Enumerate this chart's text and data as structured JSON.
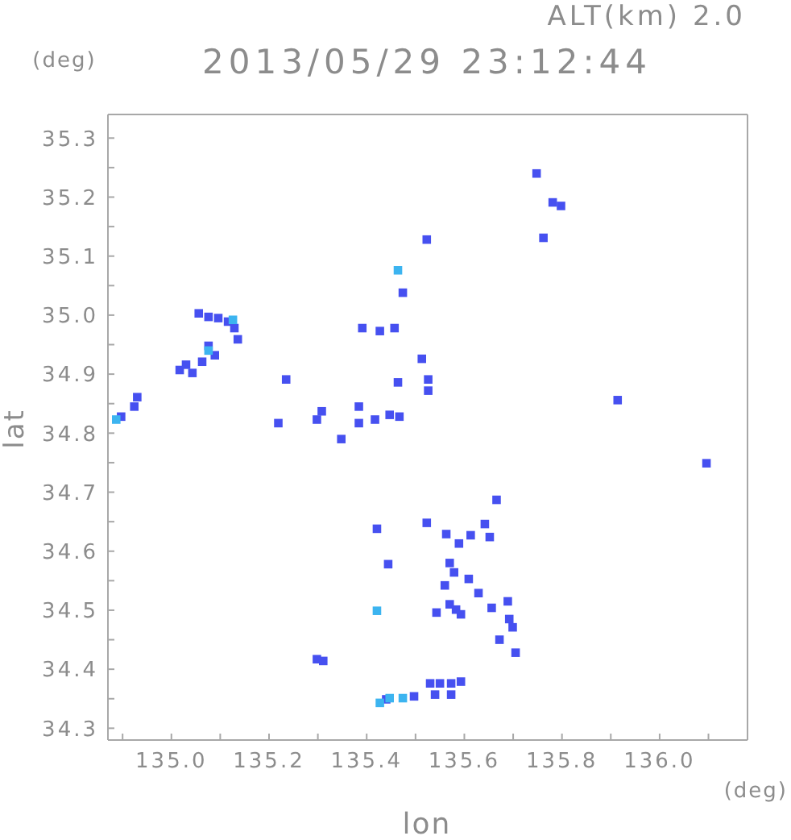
{
  "chart_data": {
    "type": "scatter",
    "title": "2013/05/29 23:12:44",
    "subtitle": "ALT(km) 2.0",
    "xlabel": "lon",
    "ylabel": "lat",
    "annotations": [
      "(deg)",
      "(deg)"
    ],
    "marker": "square",
    "xlim": [
      134.87,
      136.18
    ],
    "ylim": [
      34.28,
      35.34
    ],
    "xticks": [
      {
        "value": 134.9,
        "label": null
      },
      {
        "value": 135,
        "label": "135.0"
      },
      {
        "value": 135.1,
        "label": null
      },
      135.2,
      {
        "value": 135.3,
        "label": null
      },
      135.4,
      {
        "value": 135.5,
        "label": null
      },
      135.6,
      {
        "value": 135.7,
        "label": null
      },
      135.8,
      {
        "value": 135.9,
        "label": null
      },
      {
        "value": 136,
        "label": "136.0"
      },
      {
        "value": 136.1,
        "label": null
      }
    ],
    "yticks": [
      34.3,
      {
        "value": 34.35,
        "label": null
      },
      34.4,
      {
        "value": 34.45,
        "label": null
      },
      34.5,
      {
        "value": 34.55,
        "label": null
      },
      34.6,
      {
        "value": 34.65,
        "label": null
      },
      34.7,
      {
        "value": 34.75,
        "label": null
      },
      34.8,
      {
        "value": 34.85,
        "label": null
      },
      34.9,
      {
        "value": 34.95,
        "label": null
      },
      {
        "value": 35,
        "label": "35.0"
      },
      {
        "value": 35.05,
        "label": null
      },
      35.1,
      {
        "value": 35.15,
        "label": null
      },
      35.2,
      {
        "value": 35.25,
        "label": null
      },
      35.3
    ],
    "series": [
      {
        "color": "#4650f0",
        "x": [
          135.076,
          135.056,
          135.096,
          135.116,
          135.129,
          135.136,
          135.076,
          135.089,
          135.063,
          135.03,
          135.043,
          135.017,
          134.897,
          134.924,
          134.93,
          135.391,
          135.427,
          135.235,
          135.219,
          135.298,
          135.308,
          135.384,
          135.384,
          135.417,
          135.447,
          135.467,
          135.348,
          135.748,
          135.781,
          135.798,
          135.762,
          135.523,
          135.474,
          135.457,
          135.513,
          135.526,
          135.526,
          135.464,
          135.914,
          135.421,
          135.444,
          135.298,
          135.311,
          136.096,
          135.666,
          135.523,
          135.563,
          135.613,
          135.589,
          135.642,
          135.652,
          135.57,
          135.579,
          135.609,
          135.56,
          135.629,
          135.57,
          135.583,
          135.593,
          135.543,
          135.656,
          135.689,
          135.692,
          135.699,
          135.672,
          135.705,
          135.53,
          135.55,
          135.573,
          135.593,
          135.44,
          135.497,
          135.54,
          135.573
        ],
        "values": [
          34.997,
          35.003,
          34.995,
          34.989,
          34.978,
          34.959,
          34.948,
          34.932,
          34.921,
          34.916,
          34.902,
          34.907,
          34.828,
          34.845,
          34.861,
          34.978,
          34.973,
          34.891,
          34.817,
          34.823,
          34.837,
          34.845,
          34.817,
          34.823,
          34.831,
          34.828,
          34.79,
          35.24,
          35.191,
          35.185,
          35.131,
          35.128,
          35.038,
          34.978,
          34.926,
          34.891,
          34.872,
          34.886,
          34.856,
          34.638,
          34.578,
          34.417,
          34.414,
          34.749,
          34.687,
          34.648,
          34.629,
          34.627,
          34.613,
          34.646,
          34.624,
          34.58,
          34.564,
          34.553,
          34.542,
          34.529,
          34.51,
          34.501,
          34.493,
          34.496,
          34.504,
          34.515,
          34.485,
          34.471,
          34.45,
          34.428,
          34.376,
          34.376,
          34.376,
          34.379,
          34.349,
          34.354,
          34.357,
          34.357
        ]
      },
      {
        "color": "#3cb4f0",
        "x": [
          135.126,
          135.076,
          134.887,
          135.464,
          135.421,
          135.447,
          135.474,
          135.427
        ],
        "values": [
          34.992,
          34.94,
          34.823,
          35.076,
          34.499,
          34.351,
          34.351,
          34.343
        ]
      }
    ]
  }
}
